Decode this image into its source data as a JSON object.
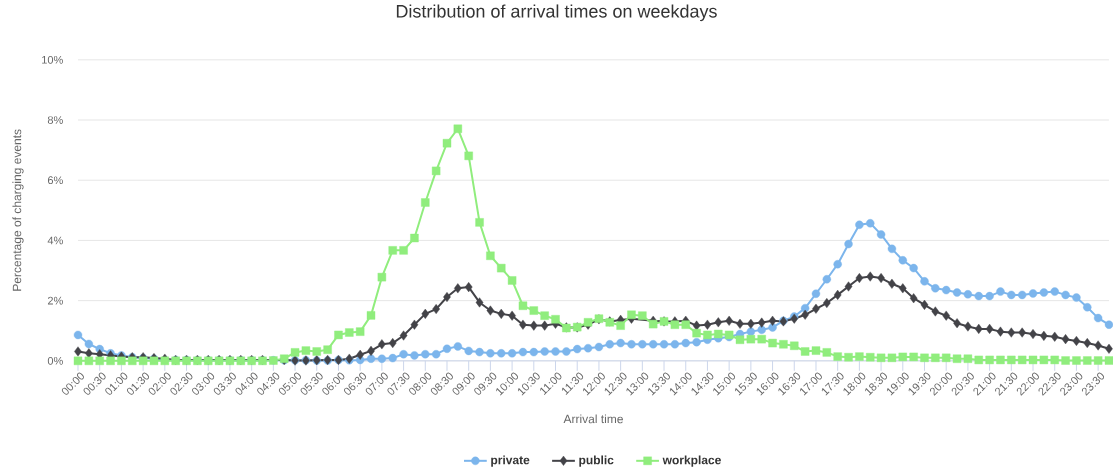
{
  "chart_data": {
    "type": "line",
    "title": "Distribution of arrival times on weekdays",
    "xlabel": "Arrival time",
    "ylabel": "Percentage of charging events",
    "categories": [
      "00:00",
      null,
      "00:30",
      null,
      "01:00",
      null,
      "01:30",
      null,
      "02:00",
      null,
      "02:30",
      null,
      "03:00",
      null,
      "03:30",
      null,
      "04:00",
      null,
      "04:30",
      null,
      "05:00",
      null,
      "05:30",
      null,
      "06:00",
      null,
      "06:30",
      null,
      "07:00",
      null,
      "07:30",
      null,
      "08:00",
      null,
      "08:30",
      null,
      "09:00",
      null,
      "09:30",
      null,
      "10:00",
      null,
      "10:30",
      null,
      "11:00",
      null,
      "11:30",
      null,
      "12:00",
      null,
      "12:30",
      null,
      "13:00",
      null,
      "13:30",
      null,
      "14:00",
      null,
      "14:30",
      null,
      "15:00",
      null,
      "15:30",
      null,
      "16:00",
      null,
      "16:30",
      null,
      "17:00",
      null,
      "17:30",
      null,
      "18:00",
      null,
      "18:30",
      null,
      "19:00",
      null,
      "19:30",
      null,
      "20:00",
      null,
      "20:30",
      null,
      "21:00",
      null,
      "21:30",
      null,
      "22:00",
      null,
      "22:30",
      null,
      "23:00",
      null,
      "23:30",
      null
    ],
    "series": [
      {
        "name": "private",
        "color": "#7cb5ec",
        "marker": "circle",
        "values": [
          0.86,
          0.56,
          0.39,
          0.25,
          0.18,
          0.12,
          0.09,
          0.07,
          0.03,
          0.03,
          0.03,
          0.02,
          0.02,
          0.02,
          0.02,
          0.02,
          0.02,
          0.02,
          0.02,
          0.02,
          0.02,
          0.02,
          0.01,
          0.01,
          0.03,
          0.02,
          0.03,
          0.07,
          0.07,
          0.09,
          0.22,
          0.18,
          0.22,
          0.22,
          0.4,
          0.48,
          0.33,
          0.29,
          0.25,
          0.25,
          0.25,
          0.29,
          0.29,
          0.31,
          0.31,
          0.31,
          0.39,
          0.42,
          0.46,
          0.55,
          0.59,
          0.55,
          0.55,
          0.55,
          0.55,
          0.55,
          0.59,
          0.62,
          0.7,
          0.75,
          0.79,
          0.89,
          0.97,
          1.03,
          1.11,
          1.33,
          1.47,
          1.75,
          2.23,
          2.71,
          3.21,
          3.88,
          4.52,
          4.57,
          4.2,
          3.72,
          3.34,
          3.08,
          2.64,
          2.41,
          2.35,
          2.27,
          2.21,
          2.15,
          2.15,
          2.3,
          2.19,
          2.19,
          2.24,
          2.27,
          2.3,
          2.19,
          2.1,
          1.78,
          1.42,
          1.2
        ]
      },
      {
        "name": "public",
        "color": "#434348",
        "marker": "diamond",
        "values": [
          0.31,
          0.25,
          0.22,
          0.18,
          0.14,
          0.12,
          0.12,
          0.09,
          0.07,
          0.03,
          0.03,
          0.03,
          0.03,
          0.03,
          0.03,
          0.03,
          0.03,
          0.03,
          null,
          0.03,
          0.01,
          0.01,
          0.02,
          0.03,
          0.03,
          0.07,
          0.2,
          0.33,
          0.55,
          0.59,
          0.84,
          1.2,
          1.56,
          1.72,
          2.12,
          2.41,
          2.45,
          1.94,
          1.67,
          1.56,
          1.5,
          1.2,
          1.17,
          1.17,
          1.23,
          1.11,
          1.11,
          1.2,
          1.38,
          1.31,
          1.36,
          1.4,
          null,
          1.33,
          1.31,
          1.31,
          1.33,
          1.17,
          1.2,
          1.28,
          1.33,
          1.23,
          1.23,
          1.27,
          1.33,
          1.31,
          1.4,
          1.53,
          1.73,
          1.92,
          2.19,
          2.47,
          2.75,
          2.8,
          2.75,
          2.56,
          2.41,
          2.08,
          1.86,
          1.64,
          1.5,
          1.25,
          1.14,
          1.06,
          1.06,
          0.97,
          0.94,
          0.94,
          0.89,
          0.83,
          0.8,
          0.72,
          0.66,
          0.59,
          0.51,
          0.4
        ]
      },
      {
        "name": "workplace",
        "color": "#90ed7d",
        "marker": "square",
        "values": [
          0,
          0,
          0,
          0,
          0,
          0,
          0,
          0,
          0,
          0,
          0,
          0,
          0,
          0,
          0,
          0,
          0,
          0,
          0.01,
          0.07,
          0.28,
          0.34,
          0.31,
          0.37,
          0.86,
          0.94,
          0.97,
          1.51,
          2.78,
          3.67,
          3.67,
          4.08,
          5.26,
          6.31,
          7.23,
          7.71,
          6.81,
          4.6,
          3.49,
          3.08,
          2.67,
          1.83,
          1.67,
          1.5,
          1.38,
          1.09,
          1.12,
          1.28,
          1.4,
          1.28,
          1.17,
          1.53,
          1.5,
          1.22,
          1.31,
          1.2,
          1.2,
          0.92,
          0.86,
          0.89,
          0.86,
          0.7,
          0.72,
          0.72,
          0.59,
          0.55,
          0.5,
          0.31,
          0.34,
          0.28,
          0.14,
          0.12,
          0.14,
          0.12,
          0.1,
          0.1,
          0.13,
          0.13,
          0.1,
          0.1,
          0.1,
          0.07,
          0.07,
          0.03,
          0.03,
          0.03,
          0.03,
          0.03,
          0.03,
          0.03,
          0.03,
          0.01,
          0.01,
          0.01,
          0.01,
          0.01
        ]
      }
    ],
    "ylim": [
      0,
      10
    ],
    "yticks": [
      {
        "value": 0,
        "label": "0%"
      },
      {
        "value": 2,
        "label": "2%"
      },
      {
        "value": 4,
        "label": "4%"
      },
      {
        "value": 6,
        "label": "6%"
      },
      {
        "value": 8,
        "label": "8%"
      },
      {
        "value": 10,
        "label": "10%"
      }
    ],
    "grid": "y",
    "legend": "bottom"
  }
}
